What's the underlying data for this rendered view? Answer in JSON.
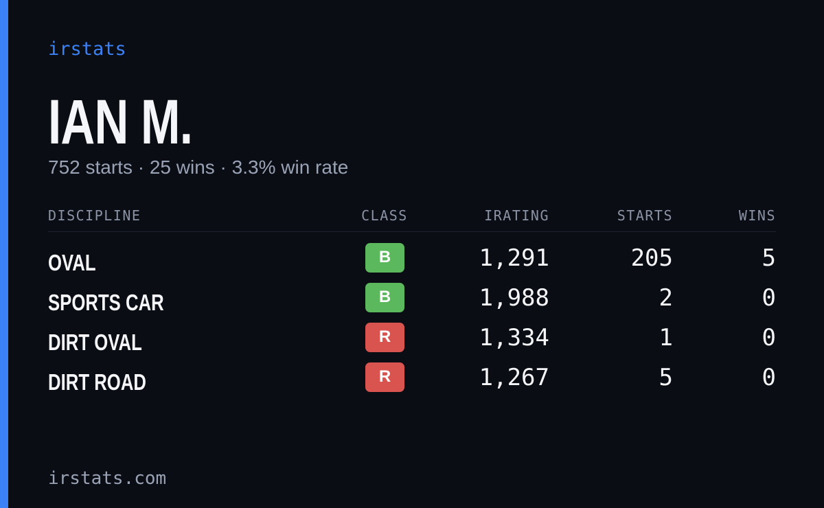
{
  "brand": "irstats",
  "driver": {
    "name": "IAN M.",
    "summary": "752 starts · 25 wins · 3.3% win rate"
  },
  "table": {
    "headers": [
      "DISCIPLINE",
      "CLASS",
      "IRATING",
      "STARTS",
      "WINS"
    ],
    "rows": [
      {
        "discipline": "OVAL",
        "class": "B",
        "class_color": "#5cb85c",
        "irating": "1,291",
        "starts": 205,
        "wins": 5
      },
      {
        "discipline": "SPORTS CAR",
        "class": "B",
        "class_color": "#5cb85c",
        "irating": "1,988",
        "starts": 2,
        "wins": 0
      },
      {
        "discipline": "DIRT OVAL",
        "class": "R",
        "class_color": "#d9534f",
        "irating": "1,334",
        "starts": 1,
        "wins": 0
      },
      {
        "discipline": "DIRT ROAD",
        "class": "R",
        "class_color": "#d9534f",
        "irating": "1,267",
        "starts": 5,
        "wins": 0
      }
    ]
  },
  "footer": "irstats.com"
}
